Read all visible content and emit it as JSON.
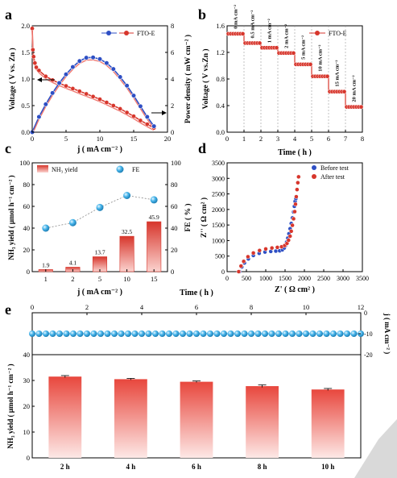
{
  "panel_letters": [
    "a",
    "b",
    "c",
    "d",
    "e"
  ],
  "colors": {
    "red": "#d7362c",
    "red_light": "#f07a72",
    "blue": "#2e4fc4",
    "cyan": "#3aa6e0",
    "gray": "#d9d9d9"
  },
  "chart_data": [
    {
      "id": "a",
      "type": "line",
      "xlabel": "j ( mA cm⁻² )",
      "ylabel_left": "Voltage ( V vs. Zn )",
      "ylabel_right": "Power density ( mW cm⁻² )",
      "xlim": [
        0,
        20
      ],
      "ylim": [
        0,
        2.0
      ],
      "y2lim": [
        0,
        8
      ],
      "xticks": [
        "0",
        "5",
        "10",
        "15",
        "20"
      ],
      "yticks": [
        "0.0",
        "0.5",
        "1.0",
        "1.5",
        "2.0"
      ],
      "y2ticks": [
        "0",
        "2",
        "4",
        "6",
        "8"
      ],
      "legend": [
        "FTO-E"
      ],
      "series": [
        {
          "axis": "left",
          "x": [
            0,
            0.1,
            0.2,
            0.4,
            0.6,
            1,
            2,
            3,
            4,
            5,
            6,
            7,
            8,
            9,
            10,
            11,
            12,
            13,
            14,
            15,
            16,
            17,
            18
          ],
          "y": [
            1.95,
            1.55,
            1.42,
            1.3,
            1.22,
            1.16,
            1.05,
            0.98,
            0.92,
            0.87,
            0.82,
            0.77,
            0.72,
            0.67,
            0.62,
            0.56,
            0.5,
            0.44,
            0.37,
            0.3,
            0.22,
            0.15,
            0.08
          ]
        },
        {
          "axis": "right",
          "x": [
            0,
            1,
            2,
            3,
            4,
            5,
            6,
            7,
            8,
            9,
            10,
            11,
            12,
            13,
            14,
            15,
            16,
            17,
            18
          ],
          "y": [
            0,
            1.15,
            2.1,
            2.95,
            3.7,
            4.35,
            4.9,
            5.35,
            5.6,
            5.62,
            5.5,
            5.2,
            4.75,
            4.15,
            3.5,
            2.75,
            1.95,
            1.15,
            0.45
          ]
        }
      ]
    },
    {
      "id": "b",
      "type": "line",
      "xlabel": "Time ( h )",
      "ylabel": "Voltage ( V vs.Zn )",
      "xlim": [
        0,
        8
      ],
      "ylim": [
        0,
        1.6
      ],
      "xticks": [
        "0",
        "1",
        "2",
        "3",
        "4",
        "5",
        "6",
        "7",
        "8"
      ],
      "yticks": [
        "0.0",
        "0.4",
        "0.8",
        "1.2",
        "1.6"
      ],
      "legend": [
        "FTO-E"
      ],
      "steps": [
        {
          "label": "0 mA cm⁻²",
          "x0": 0,
          "x1": 1,
          "v": 1.48
        },
        {
          "label": "0.5 mA cm⁻²",
          "x0": 1,
          "x1": 2,
          "v": 1.34
        },
        {
          "label": "1 mA cm⁻²",
          "x0": 2,
          "x1": 3,
          "v": 1.27
        },
        {
          "label": "2 mA cm⁻²",
          "x0": 3,
          "x1": 4,
          "v": 1.19
        },
        {
          "label": "5 mA cm⁻²",
          "x0": 4,
          "x1": 5,
          "v": 1.02
        },
        {
          "label": "10 mA cm⁻²",
          "x0": 5,
          "x1": 6,
          "v": 0.84
        },
        {
          "label": "15 mA cm⁻²",
          "x0": 6,
          "x1": 7,
          "v": 0.61
        },
        {
          "label": "20 mA cm⁻²",
          "x0": 7,
          "x1": 8,
          "v": 0.38
        }
      ]
    },
    {
      "id": "c",
      "type": "bar",
      "xlabel": "j ( mA cm⁻² )",
      "ylabel_left": "NH₃ yield ( μmol h⁻¹ cm⁻² )",
      "ylabel_right": "FE ( % )",
      "categories": [
        "1",
        "2",
        "5",
        "10",
        "15"
      ],
      "ylim": [
        0,
        100
      ],
      "y2lim": [
        0,
        100
      ],
      "yticks": [
        "0",
        "20",
        "40",
        "60",
        "80",
        "100"
      ],
      "y2ticks": [
        "0",
        "20",
        "40",
        "60",
        "80",
        "100"
      ],
      "series": [
        {
          "name": "NH₃ yield",
          "values": [
            1.9,
            4.1,
            13.7,
            32.5,
            45.9
          ],
          "labels": [
            "1.9",
            "4.1",
            "13.7",
            "32.5",
            "45.9"
          ]
        },
        {
          "name": "FE",
          "values": [
            40,
            45,
            59,
            70,
            66
          ]
        }
      ]
    },
    {
      "id": "d",
      "type": "scatter",
      "xlabel": "Z' ( Ω  cm² )",
      "ylabel": "Z'' ( Ω cm² )",
      "xlim": [
        0,
        3500
      ],
      "ylim": [
        0,
        3500
      ],
      "xticks": [
        "0",
        "500",
        "1000",
        "1500",
        "2000",
        "2500",
        "3000",
        "3500"
      ],
      "yticks": [
        "0",
        "500",
        "1000",
        "1500",
        "2000",
        "2500",
        "3000",
        "3500"
      ],
      "series": [
        {
          "name": "Before test",
          "x": [
            320,
            380,
            450,
            550,
            680,
            830,
            980,
            1130,
            1260,
            1360,
            1430,
            1480,
            1510,
            1540,
            1570,
            1600,
            1630,
            1660,
            1690,
            1720,
            1740,
            1760,
            1780
          ],
          "y": [
            0,
            150,
            280,
            410,
            520,
            590,
            630,
            650,
            660,
            670,
            700,
            760,
            840,
            950,
            1080,
            1220,
            1380,
            1550,
            1730,
            1920,
            2100,
            2260,
            2350
          ]
        },
        {
          "name": "After test",
          "x": [
            300,
            360,
            430,
            540,
            680,
            840,
            1000,
            1160,
            1300,
            1410,
            1490,
            1550,
            1590,
            1630,
            1660,
            1690,
            1720,
            1750,
            1770,
            1790,
            1810,
            1830,
            1850
          ],
          "y": [
            0,
            180,
            330,
            480,
            600,
            680,
            730,
            760,
            780,
            800,
            840,
            910,
            1010,
            1140,
            1300,
            1490,
            1700,
            1930,
            2170,
            2410,
            2640,
            2860,
            3050
          ]
        }
      ]
    },
    {
      "id": "e",
      "type": "bar",
      "top_axis": {
        "label": "Time ( h )",
        "xlim": [
          0,
          12
        ],
        "xticks": [
          "0",
          "2",
          "4",
          "6",
          "8",
          "10",
          "12"
        ]
      },
      "j_axis": {
        "label": "j ( mA cm⁻² )",
        "ylim": [
          -20,
          0
        ],
        "ticks": [
          "0",
          "-10",
          "-20"
        ],
        "value": -10
      },
      "ylabel": "NH₃ yield ( μmol h⁻¹ cm⁻² )",
      "ylim": [
        0,
        40
      ],
      "yticks": [
        "0",
        "10",
        "20",
        "30",
        "40"
      ],
      "categories": [
        "2 h",
        "4 h",
        "6 h",
        "8 h",
        "10 h"
      ],
      "values": [
        31.5,
        30.5,
        29.5,
        27.8,
        26.5
      ],
      "errors": [
        0.4,
        0.3,
        0.3,
        0.5,
        0.4
      ]
    }
  ]
}
